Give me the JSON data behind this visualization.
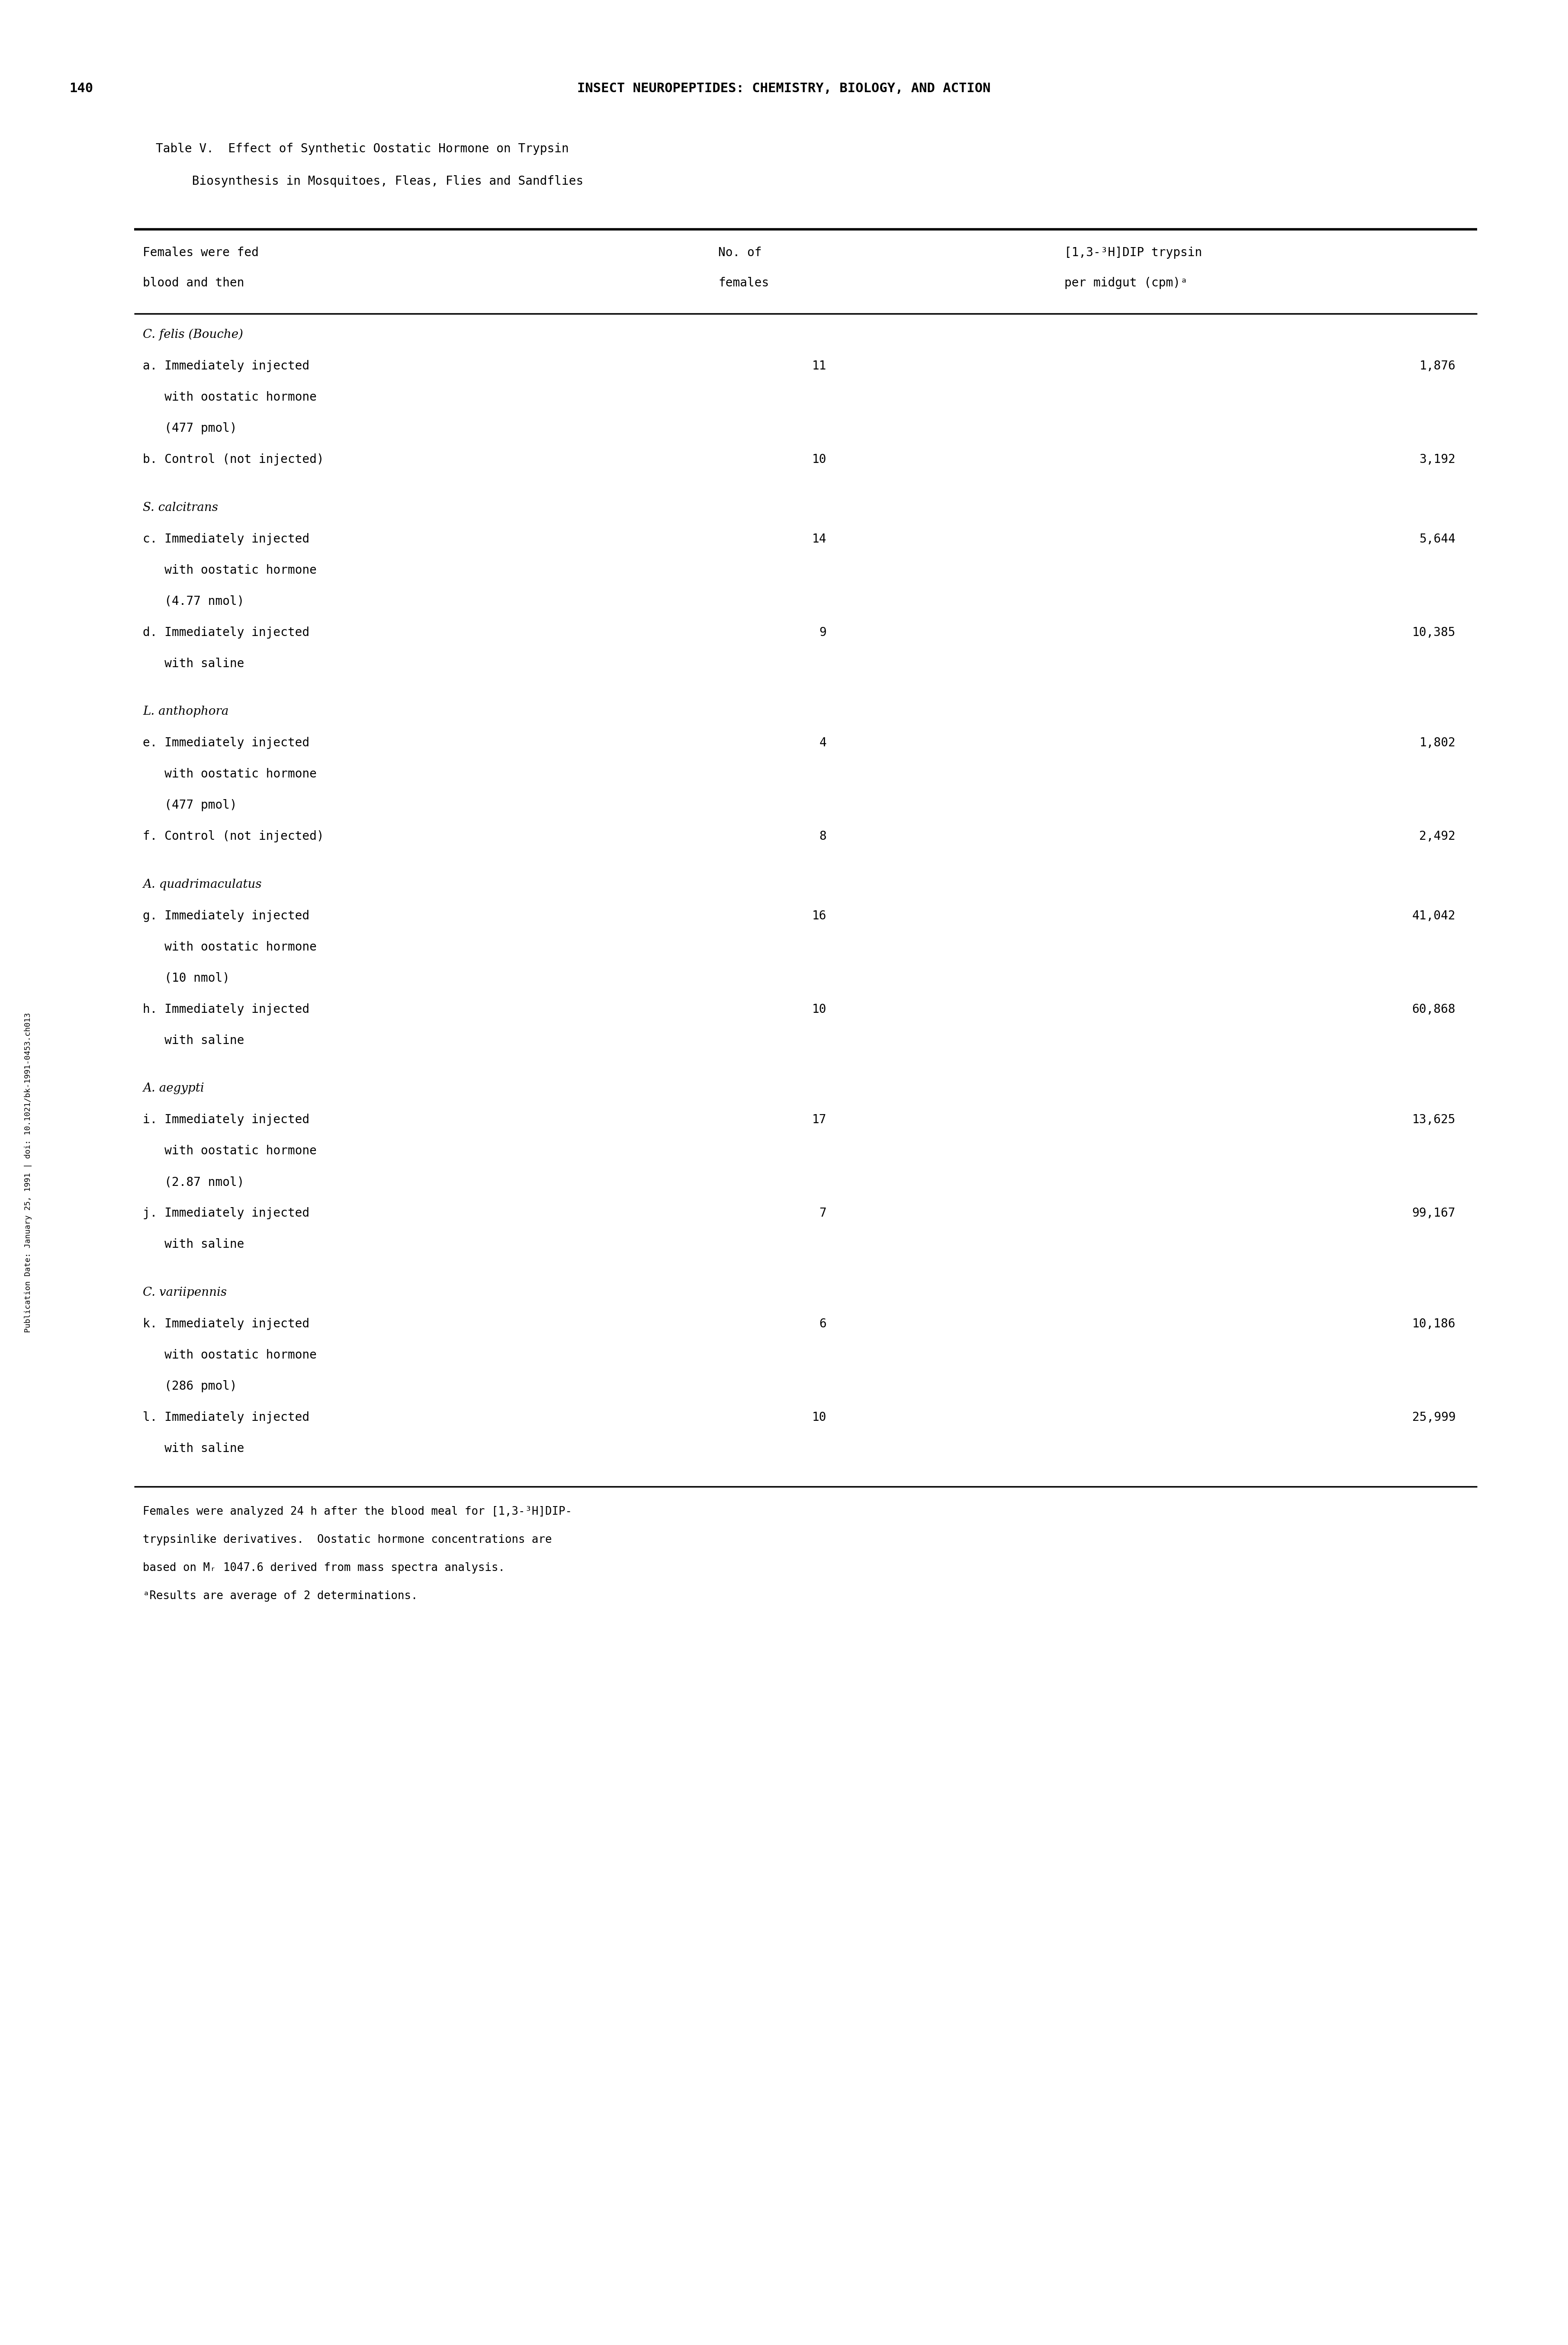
{
  "page_number": "140",
  "page_header": "INSECT NEUROPEPTIDES: CHEMISTRY, BIOLOGY, AND ACTION",
  "table_title_line1": "Table V.  Effect of Synthetic Oostatic Hormone on Trypsin",
  "table_title_line2": "     Biosynthesis in Mosquitoes, Fleas, Flies and Sandflies",
  "col1_header_line1": "Females were fed",
  "col1_header_line2": "blood and then",
  "col2_header_line1": "No. of",
  "col2_header_line2": "females",
  "col3_header_line1": "[1,3-³H]DIP trypsin",
  "col3_header_line2": "per midgut (cpm)ᵃ",
  "rows": [
    {
      "label": "C. felis (Bouche)",
      "italic": true,
      "species_header": true,
      "col1": "",
      "col2": "",
      "col3": ""
    },
    {
      "label": "a. Immediately injected",
      "italic": false,
      "species_header": false,
      "col1": "",
      "col2": "11",
      "col3": "1,876"
    },
    {
      "label": "   with oostatic hormone",
      "italic": false,
      "species_header": false,
      "col1": "",
      "col2": "",
      "col3": ""
    },
    {
      "label": "   (477 pmol)",
      "italic": false,
      "species_header": false,
      "col1": "",
      "col2": "",
      "col3": ""
    },
    {
      "label": "b. Control (not injected)",
      "italic": false,
      "species_header": false,
      "col1": "",
      "col2": "10",
      "col3": "3,192"
    },
    {
      "label": "",
      "italic": false,
      "species_header": false,
      "col1": "",
      "col2": "",
      "col3": ""
    },
    {
      "label": "S. calcitrans",
      "italic": true,
      "species_header": true,
      "col1": "",
      "col2": "",
      "col3": ""
    },
    {
      "label": "c. Immediately injected",
      "italic": false,
      "species_header": false,
      "col1": "",
      "col2": "14",
      "col3": "5,644"
    },
    {
      "label": "   with oostatic hormone",
      "italic": false,
      "species_header": false,
      "col1": "",
      "col2": "",
      "col3": ""
    },
    {
      "label": "   (4.77 nmol)",
      "italic": false,
      "species_header": false,
      "col1": "",
      "col2": "",
      "col3": ""
    },
    {
      "label": "d. Immediately injected",
      "italic": false,
      "species_header": false,
      "col1": "",
      "col2": "9",
      "col3": "10,385"
    },
    {
      "label": "   with saline",
      "italic": false,
      "species_header": false,
      "col1": "",
      "col2": "",
      "col3": ""
    },
    {
      "label": "",
      "italic": false,
      "species_header": false,
      "col1": "",
      "col2": "",
      "col3": ""
    },
    {
      "label": "L. anthophora",
      "italic": true,
      "species_header": true,
      "col1": "",
      "col2": "",
      "col3": ""
    },
    {
      "label": "e. Immediately injected",
      "italic": false,
      "species_header": false,
      "col1": "",
      "col2": "4",
      "col3": "1,802"
    },
    {
      "label": "   with oostatic hormone",
      "italic": false,
      "species_header": false,
      "col1": "",
      "col2": "",
      "col3": ""
    },
    {
      "label": "   (477 pmol)",
      "italic": false,
      "species_header": false,
      "col1": "",
      "col2": "",
      "col3": ""
    },
    {
      "label": "f. Control (not injected)",
      "italic": false,
      "species_header": false,
      "col1": "",
      "col2": "8",
      "col3": "2,492"
    },
    {
      "label": "",
      "italic": false,
      "species_header": false,
      "col1": "",
      "col2": "",
      "col3": ""
    },
    {
      "label": "A. quadrimaculatus",
      "italic": true,
      "species_header": true,
      "col1": "",
      "col2": "",
      "col3": ""
    },
    {
      "label": "g. Immediately injected",
      "italic": false,
      "species_header": false,
      "col1": "",
      "col2": "16",
      "col3": "41,042"
    },
    {
      "label": "   with oostatic hormone",
      "italic": false,
      "species_header": false,
      "col1": "",
      "col2": "",
      "col3": ""
    },
    {
      "label": "   (10 nmol)",
      "italic": false,
      "species_header": false,
      "col1": "",
      "col2": "",
      "col3": ""
    },
    {
      "label": "h. Immediately injected",
      "italic": false,
      "species_header": false,
      "col1": "",
      "col2": "10",
      "col3": "60,868"
    },
    {
      "label": "   with saline",
      "italic": false,
      "species_header": false,
      "col1": "",
      "col2": "",
      "col3": ""
    },
    {
      "label": "",
      "italic": false,
      "species_header": false,
      "col1": "",
      "col2": "",
      "col3": ""
    },
    {
      "label": "A. aegypti",
      "italic": true,
      "species_header": true,
      "col1": "",
      "col2": "",
      "col3": ""
    },
    {
      "label": "i. Immediately injected",
      "italic": false,
      "species_header": false,
      "col1": "",
      "col2": "17",
      "col3": "13,625"
    },
    {
      "label": "   with oostatic hormone",
      "italic": false,
      "species_header": false,
      "col1": "",
      "col2": "",
      "col3": ""
    },
    {
      "label": "   (2.87 nmol)",
      "italic": false,
      "species_header": false,
      "col1": "",
      "col2": "",
      "col3": ""
    },
    {
      "label": "j. Immediately injected",
      "italic": false,
      "species_header": false,
      "col1": "",
      "col2": "7",
      "col3": "99,167"
    },
    {
      "label": "   with saline",
      "italic": false,
      "species_header": false,
      "col1": "",
      "col2": "",
      "col3": ""
    },
    {
      "label": "",
      "italic": false,
      "species_header": false,
      "col1": "",
      "col2": "",
      "col3": ""
    },
    {
      "label": "C. variipennis",
      "italic": true,
      "species_header": true,
      "col1": "",
      "col2": "",
      "col3": ""
    },
    {
      "label": "k. Immediately injected",
      "italic": false,
      "species_header": false,
      "col1": "",
      "col2": "6",
      "col3": "10,186"
    },
    {
      "label": "   with oostatic hormone",
      "italic": false,
      "species_header": false,
      "col1": "",
      "col2": "",
      "col3": ""
    },
    {
      "label": "   (286 pmol)",
      "italic": false,
      "species_header": false,
      "col1": "",
      "col2": "",
      "col3": ""
    },
    {
      "label": "l. Immediately injected",
      "italic": false,
      "species_header": false,
      "col1": "",
      "col2": "10",
      "col3": "25,999"
    },
    {
      "label": "   with saline",
      "italic": false,
      "species_header": false,
      "col1": "",
      "col2": "",
      "col3": ""
    }
  ],
  "footnote_line1": "Females were analyzed 24 h after the blood meal for [1,3-³H]DIP-",
  "footnote_line2": "trypsinlike derivatives.  Oostatic hormone concentrations are",
  "footnote_line3": "based on Mᵣ 1047.6 derived from mass spectra analysis.",
  "footnote_line4": "ᵃResults are average of 2 determinations.",
  "side_text": "Publication Date: January 25, 1991 | doi: 10.1021/bk-1991-0453.ch013",
  "background_color": "#ffffff",
  "text_color": "#000000"
}
